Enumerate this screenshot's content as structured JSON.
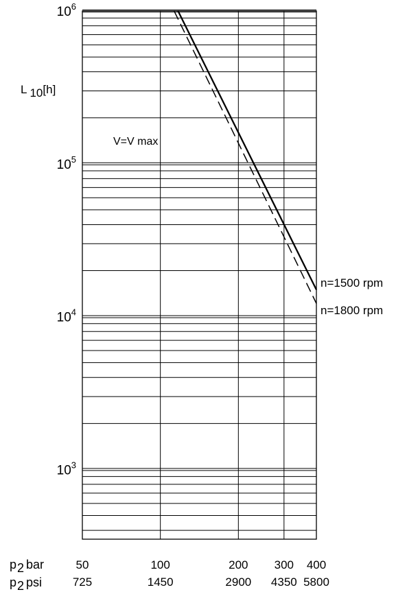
{
  "chart_data": {
    "type": "line",
    "title": "",
    "xscale": "log",
    "yscale": "log",
    "xlim": [
      50,
      400
    ],
    "ylim": [
      350,
      1000000
    ],
    "grid": true,
    "ylabel": {
      "prefix": "L",
      "sub": "10",
      "unit": "[h]"
    },
    "yticks": [
      {
        "value": 1000,
        "base": "10",
        "exp": "3"
      },
      {
        "value": 10000,
        "base": "10",
        "exp": "4"
      },
      {
        "value": 100000,
        "base": "10",
        "exp": "5"
      },
      {
        "value": 1000000,
        "base": "10",
        "exp": "6"
      }
    ],
    "xaxis_bar": {
      "prefix": "p",
      "sub": "2",
      "unit": "bar",
      "ticks": [
        {
          "value": 50,
          "label": "50"
        },
        {
          "value": 100,
          "label": "100"
        },
        {
          "value": 200,
          "label": "200"
        },
        {
          "value": 300,
          "label": "300"
        },
        {
          "value": 400,
          "label": "400"
        }
      ]
    },
    "xaxis_psi": {
      "prefix": "p",
      "sub": "2",
      "unit": "psi",
      "ticks": [
        {
          "value": 50,
          "label": "725"
        },
        {
          "value": 100,
          "label": "1450"
        },
        {
          "value": 200,
          "label": "2900"
        },
        {
          "value": 300,
          "label": "4350"
        },
        {
          "value": 400,
          "label": "5800"
        }
      ]
    },
    "annotation": "V=V max",
    "series": [
      {
        "name": "n=1500 rpm",
        "style": "solid",
        "x": [
          117,
          400
        ],
        "y": [
          1000000,
          15000
        ]
      },
      {
        "name": "n=1800 rpm",
        "style": "dashed",
        "x": [
          113,
          400
        ],
        "y": [
          1000000,
          12200
        ]
      }
    ]
  }
}
